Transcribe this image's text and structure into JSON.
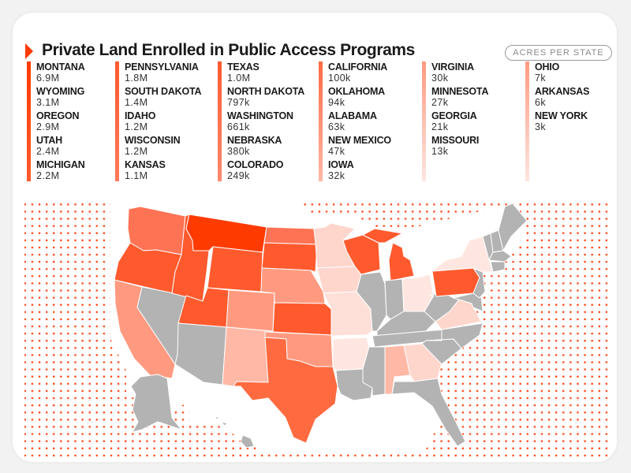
{
  "header": {
    "title": "Private Land Enrolled in Public Access Programs",
    "unit_badge": "ACRES PER STATE"
  },
  "colors": {
    "accent": "#ff3b00",
    "tier1": "#ff3b00",
    "tier2": "#ff5a2e",
    "tier3": "#ff7355",
    "tier4": "#ff9a80",
    "tier5": "#ffb8a6",
    "tier6": "#ffd6cc",
    "tier7": "#ffe6e0",
    "no_data": "#b3b3b3",
    "dot": "#ff4a1a"
  },
  "legend": {
    "columns": [
      {
        "bar_from": "#ff3b00",
        "bar_to": "#ff5a2e",
        "items": [
          {
            "name": "MONTANA",
            "value": "6.9M"
          },
          {
            "name": "WYOMING",
            "value": "3.1M"
          },
          {
            "name": "OREGON",
            "value": "2.9M"
          },
          {
            "name": "UTAH",
            "value": "2.4M"
          },
          {
            "name": "MICHIGAN",
            "value": "2.2M"
          }
        ]
      },
      {
        "bar_from": "#ff5a2e",
        "bar_to": "#ff7a5a",
        "items": [
          {
            "name": "PENNSYLVANIA",
            "value": "1.8M"
          },
          {
            "name": "SOUTH DAKOTA",
            "value": "1.4M"
          },
          {
            "name": "IDAHO",
            "value": "1.2M"
          },
          {
            "name": "WISCONSIN",
            "value": "1.2M"
          },
          {
            "name": "KANSAS",
            "value": "1.1M"
          }
        ]
      },
      {
        "bar_from": "#ff5a2e",
        "bar_to": "#ff8a70",
        "items": [
          {
            "name": "TEXAS",
            "value": "1.0M"
          },
          {
            "name": "NORTH DAKOTA",
            "value": "797k"
          },
          {
            "name": "WASHINGTON",
            "value": "661k"
          },
          {
            "name": "NEBRASKA",
            "value": "380k"
          },
          {
            "name": "COLORADO",
            "value": "249k"
          }
        ]
      },
      {
        "bar_from": "#ff6a45",
        "bar_to": "#ffb8a6",
        "items": [
          {
            "name": "CALIFORNIA",
            "value": "100k"
          },
          {
            "name": "OKLAHOMA",
            "value": "94k"
          },
          {
            "name": "ALABAMA",
            "value": "63k"
          },
          {
            "name": "NEW MEXICO",
            "value": "47k"
          },
          {
            "name": "IOWA",
            "value": "32k"
          }
        ]
      },
      {
        "bar_from": "#ff9a80",
        "bar_to": "#ffe6e0",
        "items": [
          {
            "name": "VIRGINIA",
            "value": "30k"
          },
          {
            "name": "MINNESOTA",
            "value": "27k"
          },
          {
            "name": "GEORGIA",
            "value": "21k"
          },
          {
            "name": "MISSOURI",
            "value": "13k"
          }
        ]
      },
      {
        "bar_from": "#ff9a80",
        "bar_to": "#ffe6e0",
        "items": [
          {
            "name": "OHIO",
            "value": "7k"
          },
          {
            "name": "ARKANSAS",
            "value": "6k"
          },
          {
            "name": "NEW YORK",
            "value": "3k"
          }
        ]
      }
    ]
  },
  "chart_data": {
    "type": "choropleth",
    "title": "Private Land Enrolled in Public Access Programs",
    "unit": "Acres per state",
    "categories": [
      "Montana",
      "Wyoming",
      "Oregon",
      "Utah",
      "Michigan",
      "Pennsylvania",
      "South Dakota",
      "Idaho",
      "Wisconsin",
      "Kansas",
      "Texas",
      "North Dakota",
      "Washington",
      "Nebraska",
      "Colorado",
      "California",
      "Oklahoma",
      "Alabama",
      "New Mexico",
      "Iowa",
      "Virginia",
      "Minnesota",
      "Georgia",
      "Missouri",
      "Ohio",
      "Arkansas",
      "New York"
    ],
    "values": [
      6900000,
      3100000,
      2900000,
      2400000,
      2200000,
      1800000,
      1400000,
      1200000,
      1200000,
      1100000,
      1000000,
      797000,
      661000,
      380000,
      249000,
      100000,
      94000,
      63000,
      47000,
      32000,
      30000,
      27000,
      21000,
      13000,
      7000,
      6000,
      3000
    ],
    "labels": [
      "6.9M",
      "3.1M",
      "2.9M",
      "2.4M",
      "2.2M",
      "1.8M",
      "1.4M",
      "1.2M",
      "1.2M",
      "1.1M",
      "1.0M",
      "797k",
      "661k",
      "380k",
      "249k",
      "100k",
      "94k",
      "63k",
      "47k",
      "32k",
      "30k",
      "27k",
      "21k",
      "13k",
      "7k",
      "6k",
      "3k"
    ],
    "no_data_states": [
      "Nevada",
      "Arizona",
      "Alaska",
      "Hawaii",
      "Louisiana",
      "Mississippi",
      "Illinois",
      "Indiana",
      "Kentucky",
      "Tennessee",
      "West Virginia",
      "North Carolina",
      "South Carolina",
      "Florida",
      "Maryland",
      "Delaware",
      "New Jersey",
      "Connecticut",
      "Rhode Island",
      "Massachusetts",
      "Vermont",
      "New Hampshire",
      "Maine"
    ],
    "background": "dotted ocean pattern"
  }
}
